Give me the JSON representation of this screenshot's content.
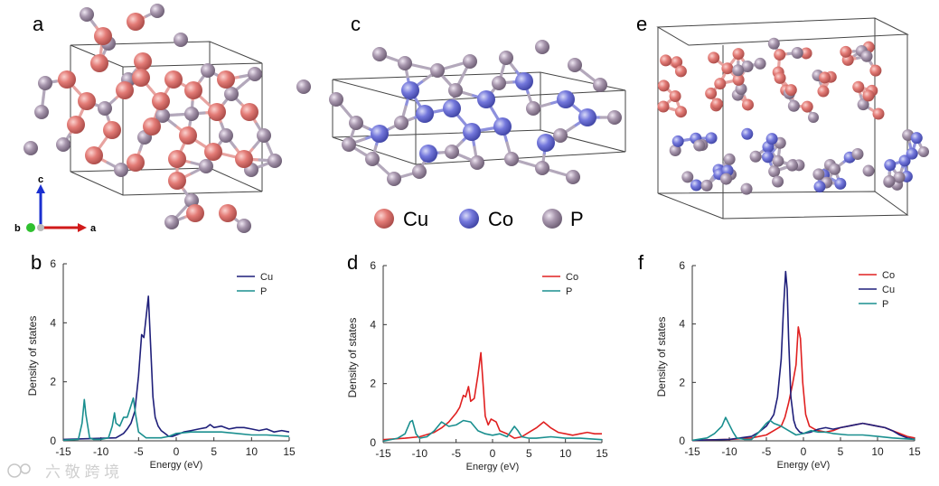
{
  "panel_labels": {
    "a": "a",
    "b": "b",
    "c": "c",
    "d": "d",
    "e": "e",
    "f": "f"
  },
  "axes_indicator": {
    "c": "c",
    "b": "b",
    "a": "a"
  },
  "atom_legend": [
    {
      "label": "Cu",
      "color": "#d9706e"
    },
    {
      "label": "Co",
      "color": "#6f74d6"
    },
    {
      "label": "P",
      "color": "#9a8aa3"
    }
  ],
  "colors": {
    "cu_atom": "#d9706e",
    "co_atom": "#6f74d6",
    "p_atom": "#9a8aa3",
    "line_cu": "#1f1f7a",
    "line_co": "#e02020",
    "line_p": "#1a8f8f"
  },
  "watermark": "六 敬 跨 境",
  "chart_data": [
    {
      "type": "line",
      "panel": "b",
      "title": "",
      "xlabel": "Energy (eV)",
      "ylabel": "Density of states",
      "xlim": [
        -15,
        15
      ],
      "ylim": [
        0,
        6
      ],
      "xticks": [
        -15,
        -10,
        -5,
        0,
        5,
        10,
        15
      ],
      "yticks": [
        0,
        2,
        4,
        6
      ],
      "legend_position": "top-right",
      "series": [
        {
          "name": "Cu",
          "color": "#1f1f7a",
          "x": [
            -15,
            -8,
            -7,
            -6.5,
            -6,
            -5.5,
            -5,
            -4.6,
            -4.3,
            -4.0,
            -3.7,
            -3.4,
            -3.1,
            -2.8,
            -2.4,
            -2,
            -1.5,
            -1,
            -0.5,
            0,
            1,
            2,
            3,
            4,
            4.5,
            5,
            6,
            7,
            8,
            9,
            10,
            11,
            12,
            13,
            14,
            15
          ],
          "y": [
            0.05,
            0.1,
            0.25,
            0.4,
            0.6,
            1.0,
            2.2,
            3.6,
            3.5,
            4.2,
            4.9,
            3.2,
            1.5,
            0.8,
            0.5,
            0.35,
            0.25,
            0.15,
            0.15,
            0.2,
            0.3,
            0.35,
            0.4,
            0.45,
            0.55,
            0.45,
            0.5,
            0.4,
            0.45,
            0.45,
            0.4,
            0.35,
            0.4,
            0.3,
            0.35,
            0.3
          ]
        },
        {
          "name": "P",
          "color": "#1a8f8f",
          "x": [
            -15,
            -13,
            -12.5,
            -12.2,
            -12,
            -11.5,
            -11,
            -10,
            -9,
            -8.5,
            -8.2,
            -8,
            -7.5,
            -7,
            -6.5,
            -6,
            -5.7,
            -5.4,
            -5,
            -4.5,
            -4,
            -3,
            -2,
            -1,
            0,
            2,
            4,
            6,
            8,
            10,
            12,
            15
          ],
          "y": [
            0.02,
            0.05,
            0.6,
            1.4,
            0.9,
            0.1,
            0.05,
            0.05,
            0.1,
            0.5,
            0.95,
            0.6,
            0.5,
            0.8,
            0.8,
            1.2,
            1.45,
            0.9,
            0.3,
            0.2,
            0.1,
            0.1,
            0.1,
            0.15,
            0.25,
            0.3,
            0.3,
            0.3,
            0.25,
            0.2,
            0.2,
            0.15
          ]
        }
      ]
    },
    {
      "type": "line",
      "panel": "d",
      "title": "",
      "xlabel": "Energy (eV)",
      "ylabel": "Density of states",
      "xlim": [
        -15,
        15
      ],
      "ylim": [
        0,
        6
      ],
      "xticks": [
        -15,
        -10,
        -5,
        0,
        5,
        10,
        15
      ],
      "yticks": [
        0,
        2,
        4,
        6
      ],
      "legend_position": "top-right",
      "series": [
        {
          "name": "Co",
          "color": "#e02020",
          "x": [
            -15,
            -12,
            -10,
            -8,
            -7,
            -6,
            -5,
            -4.5,
            -4,
            -3.7,
            -3.3,
            -3,
            -2.5,
            -2,
            -1.6,
            -1.3,
            -1,
            -0.6,
            -0.2,
            0.5,
            1,
            2,
            3,
            4,
            5,
            6,
            7,
            7.5,
            8,
            9,
            10,
            11,
            12,
            13,
            14,
            15
          ],
          "y": [
            0.1,
            0.15,
            0.2,
            0.35,
            0.5,
            0.7,
            1.0,
            1.2,
            1.6,
            1.55,
            1.9,
            1.4,
            1.5,
            2.3,
            3.05,
            2.0,
            0.9,
            0.6,
            0.8,
            0.7,
            0.4,
            0.3,
            0.15,
            0.2,
            0.35,
            0.5,
            0.7,
            0.6,
            0.5,
            0.35,
            0.3,
            0.25,
            0.3,
            0.35,
            0.3,
            0.3
          ]
        },
        {
          "name": "P",
          "color": "#1a8f8f",
          "x": [
            -15,
            -13,
            -12,
            -11.3,
            -11,
            -10.5,
            -10,
            -9,
            -8,
            -7,
            -6,
            -5,
            -4,
            -3,
            -2,
            -1,
            0,
            1,
            2,
            3,
            3.5,
            4,
            5,
            6,
            8,
            10,
            12,
            15
          ],
          "y": [
            0.05,
            0.15,
            0.3,
            0.7,
            0.75,
            0.3,
            0.15,
            0.2,
            0.4,
            0.7,
            0.55,
            0.6,
            0.75,
            0.7,
            0.4,
            0.3,
            0.25,
            0.3,
            0.2,
            0.55,
            0.4,
            0.2,
            0.15,
            0.15,
            0.2,
            0.15,
            0.15,
            0.1
          ]
        }
      ]
    },
    {
      "type": "line",
      "panel": "f",
      "title": "",
      "xlabel": "Energy (eV)",
      "ylabel": "Density of states",
      "xlim": [
        -15,
        15
      ],
      "ylim": [
        0,
        6
      ],
      "xticks": [
        -15,
        -10,
        -5,
        0,
        5,
        10,
        15
      ],
      "yticks": [
        0,
        2,
        4,
        6
      ],
      "legend_position": "top-right",
      "series": [
        {
          "name": "Co",
          "color": "#e02020",
          "x": [
            -15,
            -10,
            -7,
            -5,
            -4,
            -3,
            -2.5,
            -2,
            -1.5,
            -1,
            -0.7,
            -0.4,
            -0.1,
            0.3,
            0.8,
            1.5,
            2,
            3,
            4,
            5,
            6,
            7,
            8,
            9,
            10,
            11,
            12,
            13,
            14,
            15
          ],
          "y": [
            0.02,
            0.05,
            0.1,
            0.2,
            0.35,
            0.5,
            0.8,
            1.3,
            1.9,
            2.6,
            3.9,
            3.5,
            2.0,
            0.9,
            0.5,
            0.4,
            0.35,
            0.3,
            0.35,
            0.45,
            0.5,
            0.55,
            0.6,
            0.55,
            0.5,
            0.45,
            0.35,
            0.25,
            0.15,
            0.1
          ]
        },
        {
          "name": "Cu",
          "color": "#1f1f7a",
          "x": [
            -15,
            -10,
            -7,
            -6,
            -5,
            -4.5,
            -4,
            -3.5,
            -3,
            -2.7,
            -2.4,
            -2.2,
            -2.0,
            -1.7,
            -1.3,
            -1,
            -0.5,
            0,
            1,
            2,
            3,
            4,
            5,
            6,
            7,
            8,
            9,
            10,
            11,
            12,
            13,
            14,
            15
          ],
          "y": [
            0.02,
            0.05,
            0.15,
            0.3,
            0.5,
            0.7,
            0.9,
            1.5,
            2.8,
            4.5,
            5.8,
            5.2,
            3.5,
            1.5,
            0.7,
            0.45,
            0.3,
            0.25,
            0.3,
            0.4,
            0.45,
            0.4,
            0.45,
            0.5,
            0.55,
            0.6,
            0.55,
            0.5,
            0.45,
            0.35,
            0.2,
            0.1,
            0.05
          ]
        },
        {
          "name": "P",
          "color": "#1a8f8f",
          "x": [
            -15,
            -13,
            -12,
            -11,
            -10.5,
            -10,
            -9.5,
            -9,
            -8,
            -7,
            -6,
            -5,
            -4.5,
            -4,
            -3,
            -2,
            -1,
            0,
            1,
            2,
            3,
            4,
            6,
            8,
            10,
            12,
            15
          ],
          "y": [
            0.02,
            0.1,
            0.25,
            0.5,
            0.8,
            0.55,
            0.3,
            0.1,
            0.05,
            0.05,
            0.3,
            0.6,
            0.7,
            0.6,
            0.5,
            0.35,
            0.2,
            0.25,
            0.35,
            0.3,
            0.3,
            0.25,
            0.2,
            0.2,
            0.15,
            0.1,
            0.05
          ]
        }
      ]
    }
  ]
}
